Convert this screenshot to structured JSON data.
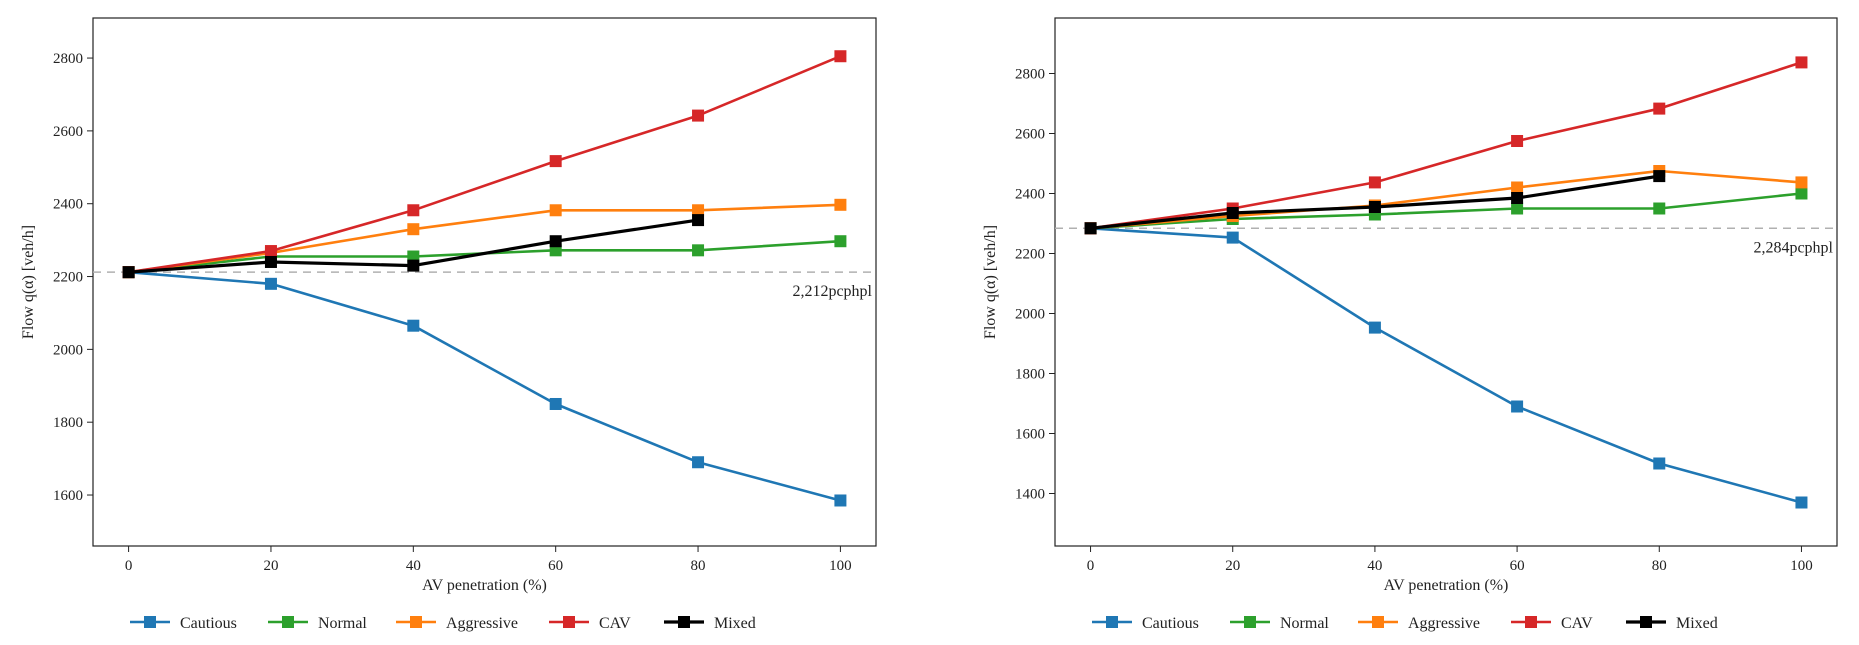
{
  "chart_data": [
    {
      "type": "line",
      "title": "",
      "xlabel": "AV penetration (%)",
      "ylabel": "Flow q(α) [veh/h]",
      "x": [
        0,
        20,
        40,
        60,
        80,
        100
      ],
      "xticks": [
        0,
        20,
        40,
        60,
        80,
        100
      ],
      "xlim": [
        -5,
        105
      ],
      "ylim": [
        1460,
        2910
      ],
      "yticks": [
        1600,
        1800,
        2000,
        2200,
        2400,
        2600,
        2800
      ],
      "grid": false,
      "legend_position": "bottom",
      "reference_line": {
        "value": 2212,
        "label": "2,212pcphpl",
        "color": "#b0b0b0"
      },
      "series": [
        {
          "name": "Cautious",
          "color": "#1f77b4",
          "x": [
            0,
            20,
            40,
            60,
            80,
            100
          ],
          "values": [
            2212,
            2180,
            2065,
            1850,
            1690,
            1585
          ]
        },
        {
          "name": "Normal",
          "color": "#2ca02c",
          "x": [
            0,
            20,
            40,
            60,
            80,
            100
          ],
          "values": [
            2212,
            2255,
            2255,
            2272,
            2272,
            2297
          ]
        },
        {
          "name": "Aggressive",
          "color": "#ff7f0e",
          "x": [
            0,
            20,
            40,
            60,
            80,
            100
          ],
          "values": [
            2212,
            2265,
            2330,
            2382,
            2382,
            2397
          ]
        },
        {
          "name": "CAV",
          "color": "#d62728",
          "x": [
            0,
            20,
            40,
            60,
            80,
            100
          ],
          "values": [
            2212,
            2270,
            2382,
            2517,
            2642,
            2805
          ]
        },
        {
          "name": "Mixed",
          "color": "#000000",
          "x": [
            0,
            20,
            40,
            60,
            80
          ],
          "values": [
            2212,
            2240,
            2230,
            2297,
            2355
          ]
        }
      ]
    },
    {
      "type": "line",
      "title": "",
      "xlabel": "AV penetration (%)",
      "ylabel": "Flow q(α) [veh/h]",
      "x": [
        0,
        20,
        40,
        60,
        80,
        100
      ],
      "xticks": [
        0,
        20,
        40,
        60,
        80,
        100
      ],
      "xlim": [
        -5,
        105
      ],
      "ylim": [
        1225,
        2985
      ],
      "yticks": [
        1400,
        1600,
        1800,
        2000,
        2200,
        2400,
        2600,
        2800
      ],
      "grid": false,
      "legend_position": "bottom",
      "reference_line": {
        "value": 2284,
        "label": "2,284pcphpl",
        "color": "#b0b0b0"
      },
      "series": [
        {
          "name": "Cautious",
          "color": "#1f77b4",
          "x": [
            0,
            20,
            40,
            60,
            80,
            100
          ],
          "values": [
            2284,
            2253,
            1953,
            1690,
            1500,
            1370
          ]
        },
        {
          "name": "Normal",
          "color": "#2ca02c",
          "x": [
            0,
            20,
            40,
            60,
            80,
            100
          ],
          "values": [
            2284,
            2315,
            2330,
            2350,
            2350,
            2400
          ]
        },
        {
          "name": "Aggressive",
          "color": "#ff7f0e",
          "x": [
            0,
            20,
            40,
            60,
            80,
            100
          ],
          "values": [
            2284,
            2325,
            2360,
            2420,
            2475,
            2437
          ]
        },
        {
          "name": "CAV",
          "color": "#d62728",
          "x": [
            0,
            20,
            40,
            60,
            80,
            100
          ],
          "values": [
            2284,
            2350,
            2437,
            2575,
            2683,
            2837
          ]
        },
        {
          "name": "Mixed",
          "color": "#000000",
          "x": [
            0,
            20,
            40,
            60,
            80
          ],
          "values": [
            2284,
            2335,
            2355,
            2385,
            2458
          ]
        }
      ]
    }
  ]
}
